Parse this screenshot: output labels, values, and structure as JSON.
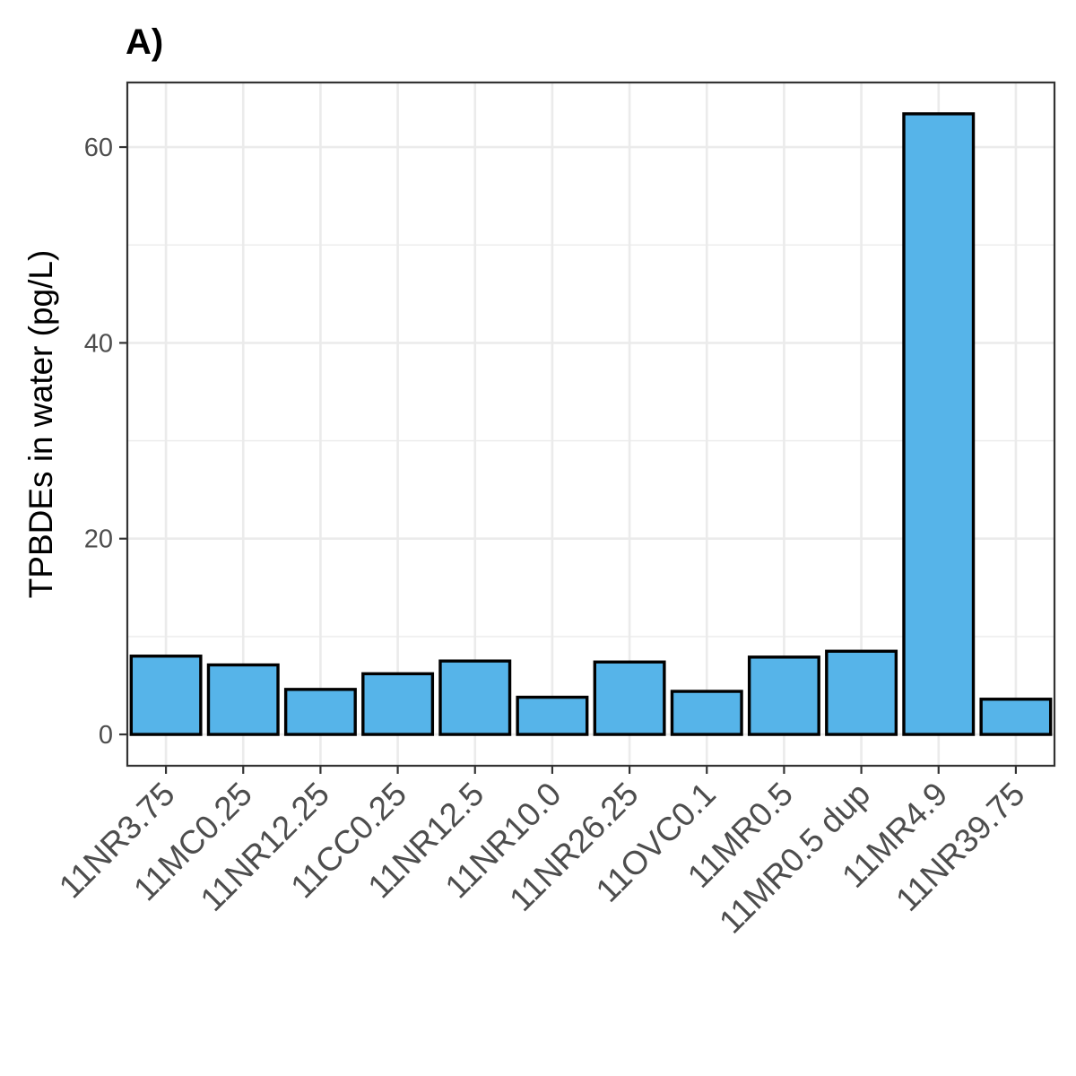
{
  "chart_data": {
    "type": "bar",
    "title": "A)",
    "xlabel": "",
    "ylabel": "TPBDEs in water (pg/L)",
    "categories": [
      "11NR3.75",
      "11MC0.25",
      "11NR12.25",
      "11CC0.25",
      "11NR12.5",
      "11NR10.0",
      "11NR26.25",
      "11OVC0.1",
      "11MR0.5",
      "11MR0.5 dup",
      "11MR4.9",
      "11NR39.75"
    ],
    "values": [
      8.0,
      7.1,
      4.6,
      6.2,
      7.5,
      3.8,
      7.4,
      4.4,
      7.9,
      8.5,
      63.4,
      3.6
    ],
    "ylim": [
      -3.2,
      66.6
    ],
    "yticks": [
      0,
      20,
      40,
      60
    ],
    "grid": true,
    "legend": "none",
    "bar_color": "#56B4E9",
    "bar_outline": "#000000"
  }
}
